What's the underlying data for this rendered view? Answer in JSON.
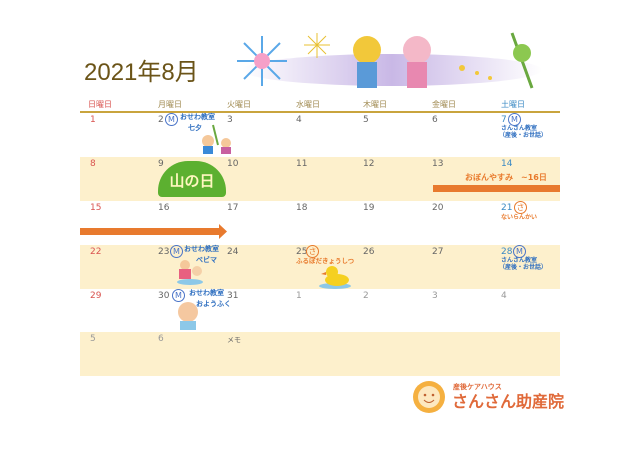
{
  "title": "2021年8月",
  "weekdays": [
    "日曜日",
    "月曜日",
    "火曜日",
    "水曜日",
    "木曜日",
    "金曜日",
    "土曜日"
  ],
  "weeks": [
    [
      "1",
      "2",
      "3",
      "4",
      "5",
      "6",
      "7"
    ],
    [
      "8",
      "9",
      "10",
      "11",
      "12",
      "13",
      "14"
    ],
    [
      "15",
      "16",
      "17",
      "18",
      "19",
      "20",
      "21"
    ],
    [
      "22",
      "23",
      "24",
      "25",
      "26",
      "27",
      "28"
    ],
    [
      "29",
      "30",
      "31",
      "1",
      "2",
      "3",
      "4"
    ],
    [
      "5",
      "6"
    ]
  ],
  "memo_label": "メモ",
  "events": {
    "osewa": "おせわ教室",
    "tanabata": "七夕",
    "bebima": "ベビマ",
    "youfuku": "おようふく",
    "sansan": "さんさん教室",
    "sansan_sub": "（産後・お世話）",
    "yamanohi": "山の日",
    "obon": "おぼんやすみ　~16日",
    "nairankai": "ないらんかい",
    "furo": "ふるぼだきょうしつ",
    "mark_m": "M",
    "mark_s": "さ"
  },
  "logo": {
    "sub": "産後ケアハウス",
    "name": "さんさん助産院"
  },
  "colors": {
    "accent_orange": "#e87a2e",
    "event_blue": "#2f6fc0",
    "cream": "#fdf0cc",
    "gold_line": "#c9a43e"
  }
}
